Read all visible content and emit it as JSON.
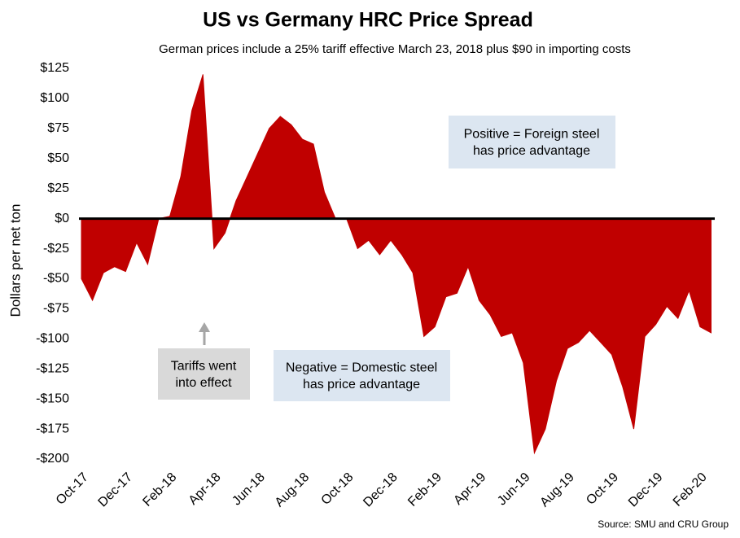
{
  "chart_data": {
    "type": "area",
    "title": "US vs Germany HRC Price Spread",
    "subtitle": "German prices include a 25% tariff effective March 23, 2018 plus $90 in importing costs",
    "y_label": "Dollars per net ton",
    "source": "Source: SMU and CRU Group",
    "annotations": [
      "Positive = Foreign steel has price advantage",
      "Negative = Domestic steel has price advantage",
      "Tariffs went into effect"
    ],
    "color": "#c00000",
    "categories": [
      "Oct-17",
      null,
      null,
      null,
      "Dec-17",
      null,
      null,
      null,
      "Feb-18",
      null,
      null,
      null,
      "Apr-18",
      null,
      null,
      null,
      "Jun-18",
      null,
      null,
      null,
      "Aug-18",
      null,
      null,
      null,
      "Oct-18",
      null,
      null,
      null,
      "Dec-18",
      null,
      null,
      null,
      "Feb-19",
      null,
      null,
      null,
      "Apr-19",
      null,
      null,
      null,
      "Jun-19",
      null,
      null,
      null,
      "Aug-19",
      null,
      null,
      null,
      "Oct-19",
      null,
      null,
      null,
      "Dec-19",
      null,
      null,
      null,
      "Feb-20",
      null
    ],
    "values": [
      -50,
      -68,
      -45,
      -40,
      -44,
      -20,
      -38,
      0,
      2,
      35,
      90,
      120,
      -25,
      -12,
      15,
      35,
      55,
      75,
      85,
      78,
      66,
      62,
      22,
      0,
      0,
      -25,
      -18,
      -30,
      -18,
      -30,
      -45,
      -98,
      -90,
      -65,
      -62,
      -40,
      -68,
      -80,
      -98,
      -95,
      -120,
      -195,
      -175,
      -135,
      -108,
      -103,
      -93,
      -103,
      -113,
      -140,
      -175,
      -98,
      -88,
      -73,
      -83,
      -60,
      -90,
      -95
    ],
    "ylim": [
      -200,
      125
    ],
    "yticks": [
      {
        "value": 125,
        "label": "$125"
      },
      {
        "value": 100,
        "label": "$100"
      },
      {
        "value": 75,
        "label": "$75"
      },
      {
        "value": 50,
        "label": "$50"
      },
      {
        "value": 25,
        "label": "$25"
      },
      {
        "value": 0,
        "label": "$0"
      },
      {
        "value": -25,
        "label": "-$25"
      },
      {
        "value": -50,
        "label": "-$50"
      },
      {
        "value": -75,
        "label": "-$75"
      },
      {
        "value": -100,
        "label": "-$100"
      },
      {
        "value": -125,
        "label": "-$125"
      },
      {
        "value": -150,
        "label": "-$150"
      },
      {
        "value": -175,
        "label": "-$175"
      },
      {
        "value": -200,
        "label": "-$200"
      }
    ]
  }
}
